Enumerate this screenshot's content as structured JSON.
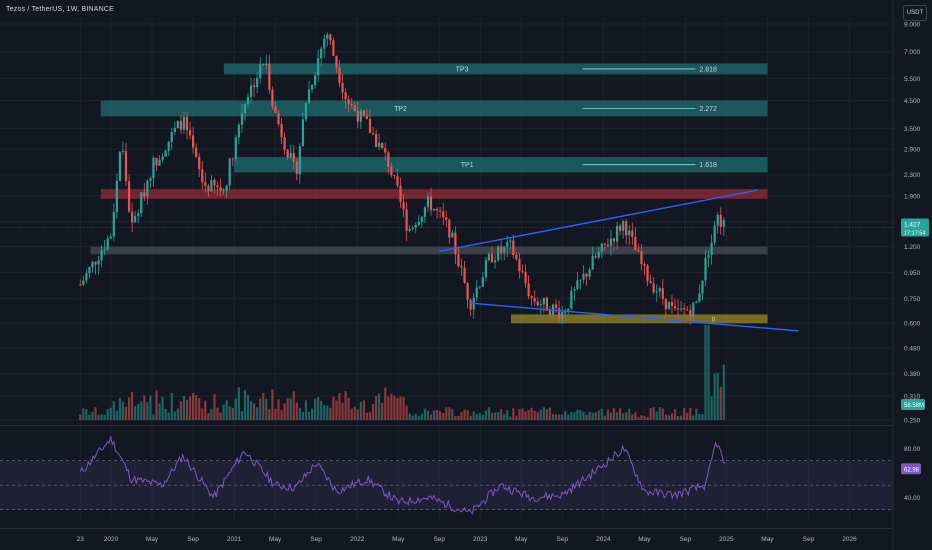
{
  "header": {
    "title": "Tezos / TetherUS, 1W, BINANCE",
    "currency_button": "USDT"
  },
  "colors": {
    "background": "#131722",
    "up": "#26a69a",
    "down": "#ef5350",
    "trendline": "#2962ff",
    "rsi_line": "#7e57c2",
    "rsi_band": "#7e57c2",
    "target_zone": "#1e6f73",
    "resistance_zone": "#8c2a35",
    "support_zone": "#9a8b2c",
    "pivot_zone": "#5d606b",
    "last_price": "#26a69a"
  },
  "price_axis": {
    "ticks": [
      "9.000",
      "7.000",
      "5.500",
      "4.500",
      "3.500",
      "2.900",
      "2.300",
      "1.900",
      "1.500",
      "1.200",
      "0.950",
      "0.750",
      "0.600",
      "0.480",
      "0.380",
      "0.310",
      "0.250"
    ],
    "last_price": "1.427",
    "countdown": "17:17:54",
    "volume_label": "58.58M"
  },
  "rsi_axis": {
    "ticks": [
      "80.00",
      "40.00"
    ],
    "current": "62.98"
  },
  "time_axis": {
    "labels": [
      "23",
      "2020",
      "May",
      "Sep",
      "2021",
      "May",
      "Sep",
      "2022",
      "May",
      "Sep",
      "2023",
      "May",
      "Sep",
      "2024",
      "May",
      "Sep",
      "2025",
      "May",
      "Sep",
      "2026"
    ]
  },
  "annotations": {
    "tp3": "TP3",
    "tp2": "TP2",
    "tp1": "TP1",
    "fib_2618": "2.618",
    "fib_2272": "2.272",
    "fib_1618": "1.618",
    "fib_0": "0"
  },
  "chart_data": {
    "type": "candlestick",
    "symbol": "Tezos / TetherUS",
    "interval": "1W",
    "exchange": "BINANCE",
    "scale": "log",
    "x_range": [
      "2019-09",
      "2026-03"
    ],
    "y_range": [
      0.25,
      9.5
    ],
    "price_path": [
      {
        "date": "2019-10",
        "close": 0.85
      },
      {
        "date": "2020-01",
        "close": 1.35
      },
      {
        "date": "2020-02",
        "close": 3.2
      },
      {
        "date": "2020-03",
        "close": 1.4
      },
      {
        "date": "2020-05",
        "close": 2.5
      },
      {
        "date": "2020-08",
        "close": 3.8
      },
      {
        "date": "2020-10",
        "close": 2.1
      },
      {
        "date": "2020-12",
        "close": 2.0
      },
      {
        "date": "2021-02",
        "close": 4.5
      },
      {
        "date": "2021-04",
        "close": 6.5
      },
      {
        "date": "2021-05",
        "close": 4.0
      },
      {
        "date": "2021-07",
        "close": 2.3
      },
      {
        "date": "2021-08",
        "close": 4.5
      },
      {
        "date": "2021-10",
        "close": 8.5
      },
      {
        "date": "2021-12",
        "close": 4.5
      },
      {
        "date": "2022-02",
        "close": 3.6
      },
      {
        "date": "2022-04",
        "close": 2.6
      },
      {
        "date": "2022-06",
        "close": 1.4
      },
      {
        "date": "2022-08",
        "close": 1.8
      },
      {
        "date": "2022-10",
        "close": 1.4
      },
      {
        "date": "2022-12",
        "close": 0.72
      },
      {
        "date": "2023-02",
        "close": 1.1
      },
      {
        "date": "2023-04",
        "close": 1.2
      },
      {
        "date": "2023-06",
        "close": 0.75
      },
      {
        "date": "2023-09",
        "close": 0.66
      },
      {
        "date": "2023-12",
        "close": 1.05
      },
      {
        "date": "2024-03",
        "close": 1.5
      },
      {
        "date": "2024-05",
        "close": 0.95
      },
      {
        "date": "2024-08",
        "close": 0.65
      },
      {
        "date": "2024-10",
        "close": 0.7
      },
      {
        "date": "2024-12",
        "close": 1.6
      },
      {
        "date": "2025-01",
        "close": 1.427
      }
    ],
    "zones": [
      {
        "label": "TP3",
        "low": 5.7,
        "high": 6.3,
        "level": "2.618"
      },
      {
        "label": "TP2",
        "low": 3.9,
        "high": 4.5,
        "level": "2.272"
      },
      {
        "label": "TP1",
        "low": 2.35,
        "high": 2.7,
        "level": "1.618"
      },
      {
        "label": "",
        "low": 1.85,
        "high": 2.02
      },
      {
        "label": "",
        "low": 1.12,
        "high": 1.2
      },
      {
        "label": "",
        "low": 0.6,
        "high": 0.65,
        "level": "0"
      }
    ],
    "trendlines": [
      {
        "from": {
          "date": "2022-09",
          "price": 1.15
        },
        "to": {
          "date": "2025-04",
          "price": 2.0
        }
      },
      {
        "from": {
          "date": "2022-12",
          "price": 0.72
        },
        "to": {
          "date": "2025-08",
          "price": 0.56
        }
      }
    ],
    "volume_last": "58.58M",
    "rsi": {
      "ylim": [
        20,
        95
      ],
      "ticks": [
        80,
        40
      ],
      "band": [
        30,
        70
      ],
      "current": 62.98,
      "path": [
        {
          "date": "2019-10",
          "value": 60
        },
        {
          "date": "2020-01",
          "value": 88
        },
        {
          "date": "2020-03",
          "value": 55
        },
        {
          "date": "2020-06",
          "value": 50
        },
        {
          "date": "2020-08",
          "value": 74
        },
        {
          "date": "2020-11",
          "value": 40
        },
        {
          "date": "2021-02",
          "value": 78
        },
        {
          "date": "2021-05",
          "value": 50
        },
        {
          "date": "2021-07",
          "value": 48
        },
        {
          "date": "2021-09",
          "value": 68
        },
        {
          "date": "2021-11",
          "value": 45
        },
        {
          "date": "2022-02",
          "value": 55
        },
        {
          "date": "2022-05",
          "value": 36
        },
        {
          "date": "2022-08",
          "value": 40
        },
        {
          "date": "2022-12",
          "value": 27
        },
        {
          "date": "2023-03",
          "value": 50
        },
        {
          "date": "2023-06",
          "value": 40
        },
        {
          "date": "2023-09",
          "value": 42
        },
        {
          "date": "2023-12",
          "value": 60
        },
        {
          "date": "2024-03",
          "value": 80
        },
        {
          "date": "2024-05",
          "value": 45
        },
        {
          "date": "2024-08",
          "value": 42
        },
        {
          "date": "2024-11",
          "value": 50
        },
        {
          "date": "2024-12",
          "value": 86
        },
        {
          "date": "2025-01",
          "value": 62.98
        }
      ]
    }
  }
}
